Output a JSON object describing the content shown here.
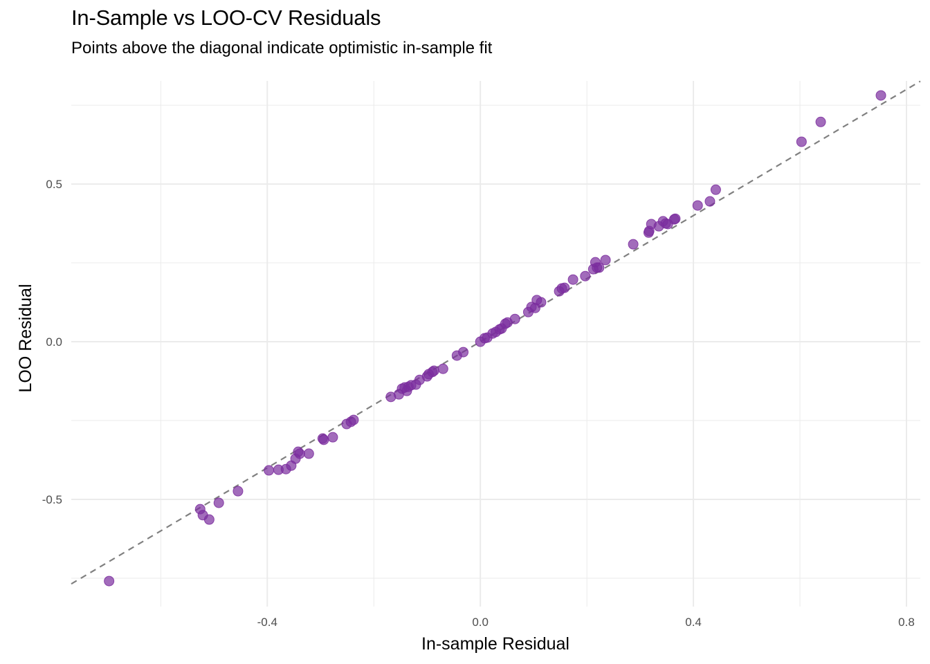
{
  "chart_data": {
    "type": "scatter",
    "title": "In-Sample vs LOO-CV Residuals",
    "subtitle": "Points above the diagonal indicate optimistic in-sample fit",
    "xlabel": "In-sample Residual",
    "ylabel": "LOO Residual",
    "xlim": [
      -0.768,
      0.826
    ],
    "ylim": [
      -0.84,
      0.827
    ],
    "x_ticks": [
      -0.4,
      0.0,
      0.4,
      0.8
    ],
    "x_tick_labels": [
      "-0.4",
      "0.0",
      "0.4",
      "0.8"
    ],
    "y_ticks": [
      -0.5,
      0.0,
      0.5
    ],
    "y_tick_labels": [
      "-0.5",
      "0.0",
      "0.5"
    ],
    "x_minor": [
      -0.6,
      -0.2,
      0.2,
      0.6
    ],
    "y_minor": [
      -0.75,
      -0.25,
      0.25,
      0.75
    ],
    "grid": true,
    "legend": "none",
    "point_color": "#7B2D9E",
    "reference_line": {
      "type": "diagonal",
      "slope": 1,
      "intercept": 0,
      "style": "dashed",
      "color": "#808080"
    },
    "points": [
      [
        -0.697,
        -0.759
      ],
      [
        -0.526,
        -0.531
      ],
      [
        -0.521,
        -0.55
      ],
      [
        -0.509,
        -0.564
      ],
      [
        -0.491,
        -0.511
      ],
      [
        -0.455,
        -0.474
      ],
      [
        -0.397,
        -0.408
      ],
      [
        -0.379,
        -0.406
      ],
      [
        -0.365,
        -0.404
      ],
      [
        -0.355,
        -0.393
      ],
      [
        -0.347,
        -0.371
      ],
      [
        -0.342,
        -0.349
      ],
      [
        -0.339,
        -0.355
      ],
      [
        -0.322,
        -0.355
      ],
      [
        -0.296,
        -0.307
      ],
      [
        -0.294,
        -0.311
      ],
      [
        -0.277,
        -0.303
      ],
      [
        -0.251,
        -0.261
      ],
      [
        -0.243,
        -0.254
      ],
      [
        -0.238,
        -0.248
      ],
      [
        -0.168,
        -0.175
      ],
      [
        -0.153,
        -0.167
      ],
      [
        -0.147,
        -0.149
      ],
      [
        -0.142,
        -0.145
      ],
      [
        -0.138,
        -0.156
      ],
      [
        -0.135,
        -0.143
      ],
      [
        -0.13,
        -0.138
      ],
      [
        -0.121,
        -0.136
      ],
      [
        -0.114,
        -0.121
      ],
      [
        -0.1,
        -0.11
      ],
      [
        -0.097,
        -0.103
      ],
      [
        -0.09,
        -0.096
      ],
      [
        -0.087,
        -0.092
      ],
      [
        -0.07,
        -0.086
      ],
      [
        -0.044,
        -0.044
      ],
      [
        -0.032,
        -0.033
      ],
      [
        0.0,
        0.0
      ],
      [
        0.008,
        0.011
      ],
      [
        0.013,
        0.013
      ],
      [
        0.023,
        0.026
      ],
      [
        0.029,
        0.031
      ],
      [
        0.036,
        0.039
      ],
      [
        0.04,
        0.042
      ],
      [
        0.047,
        0.057
      ],
      [
        0.051,
        0.061
      ],
      [
        0.065,
        0.072
      ],
      [
        0.09,
        0.094
      ],
      [
        0.096,
        0.11
      ],
      [
        0.103,
        0.107
      ],
      [
        0.106,
        0.132
      ],
      [
        0.114,
        0.125
      ],
      [
        0.148,
        0.16
      ],
      [
        0.153,
        0.169
      ],
      [
        0.158,
        0.171
      ],
      [
        0.174,
        0.197
      ],
      [
        0.197,
        0.208
      ],
      [
        0.212,
        0.23
      ],
      [
        0.216,
        0.252
      ],
      [
        0.219,
        0.235
      ],
      [
        0.223,
        0.235
      ],
      [
        0.235,
        0.259
      ],
      [
        0.287,
        0.309
      ],
      [
        0.316,
        0.346
      ],
      [
        0.317,
        0.351
      ],
      [
        0.321,
        0.373
      ],
      [
        0.335,
        0.366
      ],
      [
        0.343,
        0.382
      ],
      [
        0.348,
        0.375
      ],
      [
        0.352,
        0.373
      ],
      [
        0.364,
        0.388
      ],
      [
        0.366,
        0.39
      ],
      [
        0.408,
        0.432
      ],
      [
        0.431,
        0.445
      ],
      [
        0.442,
        0.482
      ],
      [
        0.603,
        0.634
      ],
      [
        0.639,
        0.697
      ],
      [
        0.752,
        0.781
      ]
    ]
  }
}
